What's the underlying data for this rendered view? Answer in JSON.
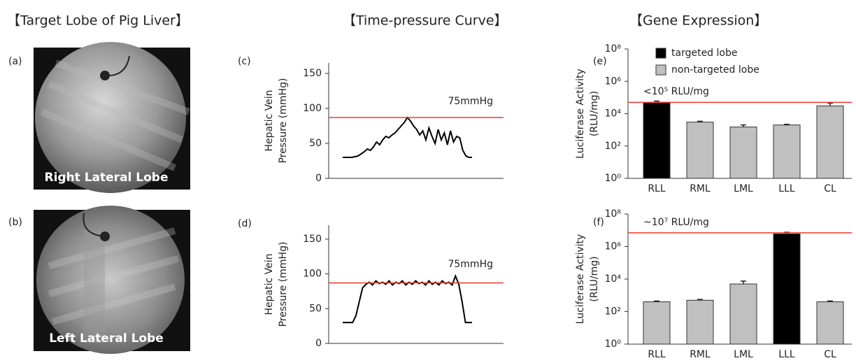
{
  "figure": {
    "headers": [
      "【Target Lobe of Pig Liver】",
      "【Time-pressure Curve】",
      "【Gene Expression】"
    ],
    "panels": [
      {
        "label": "(a)",
        "caption": "Right Lateral Lobe"
      },
      {
        "label": "(b)",
        "caption": "Left Lateral Lobe"
      }
    ]
  },
  "chart_data": [
    {
      "type": "line",
      "panel": "(c)",
      "ylabel": [
        "Hepatic Vein",
        "Pressure (mmHg)"
      ],
      "color": "#000000",
      "values": [
        30,
        30,
        30,
        30,
        31,
        32,
        35,
        38,
        42,
        40,
        45,
        52,
        48,
        55,
        60,
        58,
        62,
        65,
        70,
        75,
        80,
        87,
        82,
        75,
        70,
        62,
        68,
        55,
        72,
        60,
        50,
        70,
        55,
        65,
        48,
        68,
        52,
        60,
        58,
        40,
        32,
        30,
        30
      ],
      "ylim": [
        0,
        165
      ],
      "yticks": [
        0,
        50,
        100,
        150
      ],
      "reference_line": {
        "value": 87,
        "color": "#e8392a"
      },
      "annotation": "75mmHg"
    },
    {
      "type": "line",
      "panel": "(d)",
      "ylabel": [
        "Hepatic Vein",
        "Pressure (mmHg)"
      ],
      "color": "#000000",
      "values": [
        30,
        30,
        30,
        30,
        40,
        60,
        80,
        85,
        88,
        84,
        90,
        86,
        88,
        85,
        90,
        84,
        88,
        86,
        90,
        84,
        88,
        85,
        90,
        86,
        88,
        84,
        90,
        85,
        88,
        84,
        90,
        86,
        88,
        84,
        97,
        85,
        60,
        30,
        30,
        30
      ],
      "ylim": [
        0,
        170
      ],
      "yticks": [
        0,
        50,
        100,
        150
      ],
      "reference_line": {
        "value": 87,
        "color": "#e8392a"
      },
      "annotation": "75mmHg"
    },
    {
      "type": "bar",
      "panel": "(e)",
      "ylabel": [
        "Luciferase Activity",
        "(RLU/mg)"
      ],
      "categories": [
        "RLL",
        "RML",
        "LML",
        "LLL",
        "CL"
      ],
      "values": [
        50000,
        3000,
        1500,
        2000,
        30000
      ],
      "errors": [
        10000,
        400,
        500,
        200,
        15000
      ],
      "colors": [
        "#000000",
        "#c0c0c0",
        "#c0c0c0",
        "#c0c0c0",
        "#c0c0c0"
      ],
      "legend": [
        {
          "name": "targeted lobe",
          "color": "#000000"
        },
        {
          "name": "non-targeted lobe",
          "color": "#c0c0c0"
        }
      ],
      "log_scale": true,
      "ylim": [
        1,
        100000000
      ],
      "yticks": [
        {
          "value": 1,
          "label": "10⁰"
        },
        {
          "value": 100,
          "label": "10²"
        },
        {
          "value": 10000,
          "label": "10⁴"
        },
        {
          "value": 1000000,
          "label": "10⁶"
        },
        {
          "value": 100000000,
          "label": "10⁸"
        }
      ],
      "reference_line": {
        "value": 50000,
        "color": "#e8392a"
      },
      "annotation": "<10⁵ RLU/mg"
    },
    {
      "type": "bar",
      "panel": "(f)",
      "ylabel": [
        "Luciferase Activity",
        "(RLU/mg)"
      ],
      "categories": [
        "RLL",
        "RML",
        "LML",
        "LLL",
        "CL"
      ],
      "values": [
        400,
        500,
        5000,
        6000000,
        400
      ],
      "errors": [
        50,
        60,
        2500,
        1500000,
        50
      ],
      "colors": [
        "#c0c0c0",
        "#c0c0c0",
        "#c0c0c0",
        "#000000",
        "#c0c0c0"
      ],
      "log_scale": true,
      "ylim": [
        1,
        100000000
      ],
      "yticks": [
        {
          "value": 1,
          "label": "10⁰"
        },
        {
          "value": 100,
          "label": "10²"
        },
        {
          "value": 10000,
          "label": "10⁴"
        },
        {
          "value": 1000000,
          "label": "10⁶"
        },
        {
          "value": 100000000,
          "label": "10⁸"
        }
      ],
      "reference_line": {
        "value": 7000000,
        "color": "#e8392a"
      },
      "annotation": "~10⁷ RLU/mg"
    }
  ]
}
